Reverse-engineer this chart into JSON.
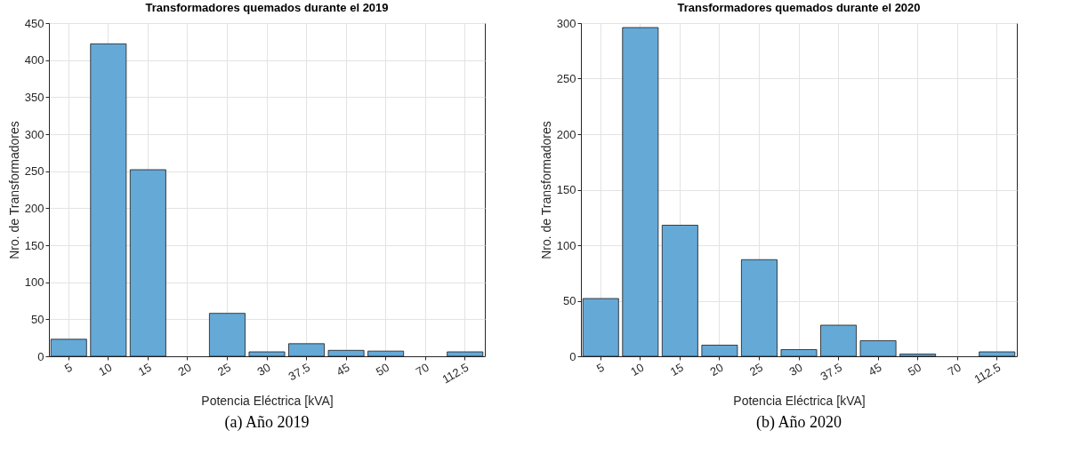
{
  "chart_data": [
    {
      "type": "bar",
      "title": "Transformadores quemados durante el 2019",
      "xlabel": "Potencia Eléctrica [kVA]",
      "ylabel": "Nro. de Transformadores",
      "categories": [
        "5",
        "10",
        "15",
        "20",
        "25",
        "30",
        "37.5",
        "45",
        "50",
        "70",
        "112.5"
      ],
      "values": [
        23,
        422,
        252,
        0,
        58,
        6,
        17,
        8,
        7,
        0,
        6
      ],
      "color": "#65a9d7",
      "ylim": [
        0,
        450
      ],
      "yticks": [
        0,
        50,
        100,
        150,
        200,
        250,
        300,
        350,
        400,
        450
      ],
      "grid": true,
      "annotations": [
        "(a)  Año 2019"
      ]
    },
    {
      "type": "bar",
      "title": "Transformadores quemados durante el 2020",
      "xlabel": "Potencia Eléctrica [kVA]",
      "ylabel": "Nro. de Transformadores",
      "categories": [
        "5",
        "10",
        "15",
        "20",
        "25",
        "30",
        "37.5",
        "45",
        "50",
        "70",
        "112.5"
      ],
      "values": [
        52,
        296,
        118,
        10,
        87,
        6,
        28,
        14,
        2,
        0,
        4
      ],
      "color": "#65a9d7",
      "ylim": [
        0,
        300
      ],
      "yticks": [
        0,
        50,
        100,
        150,
        200,
        250,
        300
      ],
      "grid": true,
      "annotations": [
        "(b)  Año 2020"
      ]
    }
  ]
}
